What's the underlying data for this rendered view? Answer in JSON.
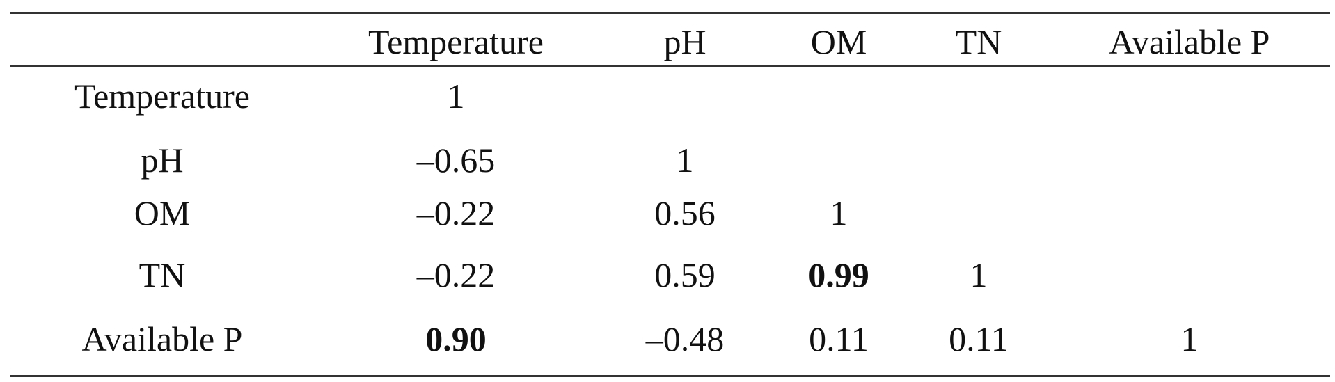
{
  "table": {
    "header": [
      "",
      "Temperature",
      "pH",
      "OM",
      "TN",
      "Available P"
    ],
    "rows": [
      {
        "label": "Temperature",
        "cells": [
          "1",
          "",
          "",
          "",
          ""
        ],
        "bold": [
          false,
          false,
          false,
          false,
          false
        ]
      },
      {
        "label": "pH",
        "cells": [
          "–0.65",
          "1",
          "",
          "",
          ""
        ],
        "bold": [
          false,
          false,
          false,
          false,
          false
        ]
      },
      {
        "label": "OM",
        "cells": [
          "–0.22",
          "0.56",
          "1",
          "",
          ""
        ],
        "bold": [
          false,
          false,
          false,
          false,
          false
        ]
      },
      {
        "label": "TN",
        "cells": [
          "–0.22",
          "0.59",
          "0.99",
          "1",
          ""
        ],
        "bold": [
          false,
          false,
          true,
          false,
          false
        ]
      },
      {
        "label": "Available P",
        "cells": [
          "0.90",
          "–0.48",
          "0.11",
          "0.11",
          "1"
        ],
        "bold": [
          true,
          false,
          false,
          false,
          false
        ]
      }
    ]
  }
}
